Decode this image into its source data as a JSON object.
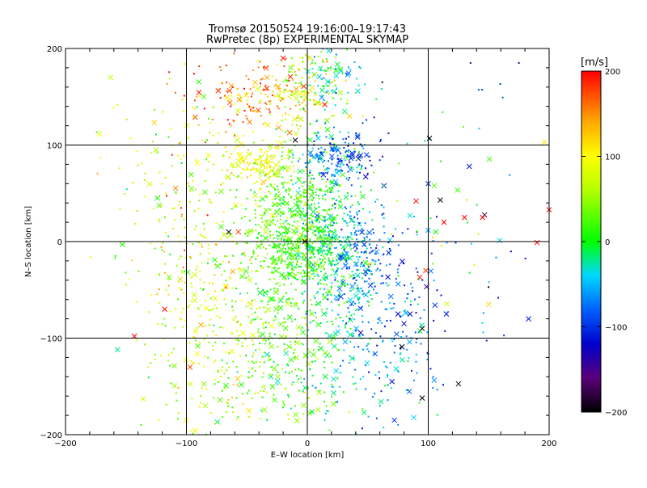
{
  "chart_data": {
    "type": "scatter",
    "title": [
      "Tromsø 20150524 19:16:00–19:17:43",
      "RwPretec (8p) EXPERIMENTAL SKYMAP"
    ],
    "xlabel": "E–W location [km]",
    "ylabel": "N–S location [km]",
    "xlim": [
      -200,
      200
    ],
    "ylim": [
      -200,
      200
    ],
    "xticks": [
      -200,
      -100,
      0,
      100,
      200
    ],
    "yticks": [
      -200,
      -100,
      0,
      100,
      200
    ],
    "xtick_labels": [
      "−200",
      "−100",
      "0",
      "100",
      "200"
    ],
    "ytick_labels": [
      "−200",
      "−100",
      "0",
      "100",
      "200"
    ],
    "grid": true,
    "marker_types": [
      "dot",
      "x"
    ],
    "colorbar": {
      "label": "[m/s]",
      "range": [
        -200,
        200
      ],
      "ticks": [
        200,
        100,
        0,
        -100,
        -200
      ],
      "tick_labels": [
        "200",
        "100",
        "0",
        "−100",
        "−200"
      ],
      "colormap": "black-purple-blue-cyan-green-yellow-red",
      "stops": [
        {
          "value": -200,
          "color": "#000000"
        },
        {
          "value": -160,
          "color": "#5a007a"
        },
        {
          "value": -120,
          "color": "#0000cc"
        },
        {
          "value": -80,
          "color": "#0060ff"
        },
        {
          "value": -40,
          "color": "#00d8ff"
        },
        {
          "value": 0,
          "color": "#00ff00"
        },
        {
          "value": 60,
          "color": "#b4ff00"
        },
        {
          "value": 100,
          "color": "#ffff00"
        },
        {
          "value": 140,
          "color": "#ffaa00"
        },
        {
          "value": 200,
          "color": "#ff0000"
        }
      ]
    },
    "clusters": [
      {
        "cx": -5,
        "cy": 5,
        "sx": 22,
        "sy": 40,
        "v_mean": 15,
        "v_sd": 25,
        "dv_dx": -0.35,
        "n": 950
      },
      {
        "cx": -30,
        "cy": 150,
        "sx": 28,
        "sy": 20,
        "v_mean": 140,
        "v_sd": 35,
        "dv_dx": -0.8,
        "n": 220
      },
      {
        "cx": 10,
        "cy": 165,
        "sx": 18,
        "sy": 25,
        "v_mean": 10,
        "v_sd": 35,
        "dv_dx": -1.8,
        "n": 160
      },
      {
        "cx": 25,
        "cy": 85,
        "sx": 15,
        "sy": 15,
        "v_mean": -80,
        "v_sd": 25,
        "dv_dx": -0.8,
        "n": 170
      },
      {
        "cx": -40,
        "cy": 80,
        "sx": 14,
        "sy": 12,
        "v_mean": 90,
        "v_sd": 20,
        "dv_dx": 0,
        "n": 140
      },
      {
        "cx": 40,
        "cy": -15,
        "sx": 16,
        "sy": 30,
        "v_mean": -70,
        "v_sd": 25,
        "dv_dx": -0.5,
        "n": 250
      },
      {
        "cx": -20,
        "cy": -120,
        "sx": 38,
        "sy": 45,
        "v_mean": 25,
        "v_sd": 35,
        "dv_dx": -0.7,
        "n": 380
      },
      {
        "cx": -80,
        "cy": -80,
        "sx": 28,
        "sy": 70,
        "v_mean": 70,
        "v_sd": 35,
        "dv_dx": 0,
        "n": 240
      },
      {
        "cx": 60,
        "cy": -100,
        "sx": 22,
        "sy": 50,
        "v_mean": -60,
        "v_sd": 30,
        "dv_dx": -0.5,
        "n": 200
      },
      {
        "cx": -90,
        "cy": 60,
        "sx": 35,
        "sy": 70,
        "v_mean": 80,
        "v_sd": 50,
        "dv_dx": 0,
        "n": 230
      },
      {
        "cx": 100,
        "cy": 10,
        "sx": 45,
        "sy": 75,
        "v_mean": -50,
        "v_sd": 70,
        "dv_dx": 0,
        "n": 90
      }
    ],
    "notable_points": [
      {
        "x": 101,
        "y": 107,
        "v": -200,
        "marker": "x"
      },
      {
        "x": 95,
        "y": -90,
        "v": -200,
        "marker": "x"
      },
      {
        "x": 95,
        "y": -162,
        "v": -200,
        "marker": "x"
      },
      {
        "x": 110,
        "y": 43,
        "v": -190,
        "marker": "x"
      },
      {
        "x": 62,
        "y": 165,
        "v": -190,
        "marker": "dot"
      },
      {
        "x": 130,
        "y": 25,
        "v": 200,
        "marker": "x"
      },
      {
        "x": 145,
        "y": 25,
        "v": 200,
        "marker": "x"
      },
      {
        "x": 113,
        "y": 20,
        "v": 200,
        "marker": "x"
      },
      {
        "x": 190,
        "y": -1,
        "v": 200,
        "marker": "x"
      },
      {
        "x": 200,
        "y": 33,
        "v": 200,
        "marker": "x"
      },
      {
        "x": -143,
        "y": -98,
        "v": 200,
        "marker": "x"
      },
      {
        "x": -118,
        "y": -70,
        "v": 200,
        "marker": "x"
      },
      {
        "x": -20,
        "y": 190,
        "v": 200,
        "marker": "x"
      },
      {
        "x": 98,
        "y": -30,
        "v": 180,
        "marker": "x"
      },
      {
        "x": 93,
        "y": -37,
        "v": 190,
        "marker": "x"
      },
      {
        "x": 90,
        "y": 42,
        "v": 200,
        "marker": "x"
      },
      {
        "x": 196,
        "y": 103,
        "v": 110,
        "marker": "x"
      },
      {
        "x": 150,
        "y": -65,
        "v": 120,
        "marker": "x"
      },
      {
        "x": 183,
        "y": -80,
        "v": -110,
        "marker": "x"
      },
      {
        "x": 115,
        "y": -75,
        "v": -110,
        "marker": "x"
      },
      {
        "x": 100,
        "y": 60,
        "v": -110,
        "marker": "x"
      },
      {
        "x": 75,
        "y": -75,
        "v": -120,
        "marker": "x"
      },
      {
        "x": 80,
        "y": -85,
        "v": -120,
        "marker": "x"
      },
      {
        "x": 85,
        "y": -75,
        "v": -120,
        "marker": "x"
      },
      {
        "x": 70,
        "y": -145,
        "v": -110,
        "marker": "x"
      },
      {
        "x": 72,
        "y": -185,
        "v": -100,
        "marker": "x"
      },
      {
        "x": 105,
        "y": 58,
        "v": 30,
        "marker": "x"
      },
      {
        "x": -153,
        "y": -3,
        "v": 10,
        "marker": "x"
      },
      {
        "x": -157,
        "y": -112,
        "v": -20,
        "marker": "x"
      },
      {
        "x": -124,
        "y": 45,
        "v": 5,
        "marker": "x"
      },
      {
        "x": -125,
        "y": 95,
        "v": 60,
        "marker": "x"
      },
      {
        "x": -57,
        "y": 10,
        "v": 180,
        "marker": "x"
      },
      {
        "x": -97,
        "y": -130,
        "v": 170,
        "marker": "x"
      },
      {
        "x": -100,
        "y": -185,
        "v": 110,
        "marker": "x"
      },
      {
        "x": -65,
        "y": 10,
        "v": -200,
        "marker": "x"
      },
      {
        "x": -2,
        "y": 0,
        "v": -200,
        "marker": "x"
      },
      {
        "x": -10,
        "y": 105,
        "v": -190,
        "marker": "x"
      },
      {
        "x": 175,
        "y": 185,
        "v": -120,
        "marker": "dot"
      },
      {
        "x": 135,
        "y": 185,
        "v": -130,
        "marker": "dot"
      }
    ]
  }
}
